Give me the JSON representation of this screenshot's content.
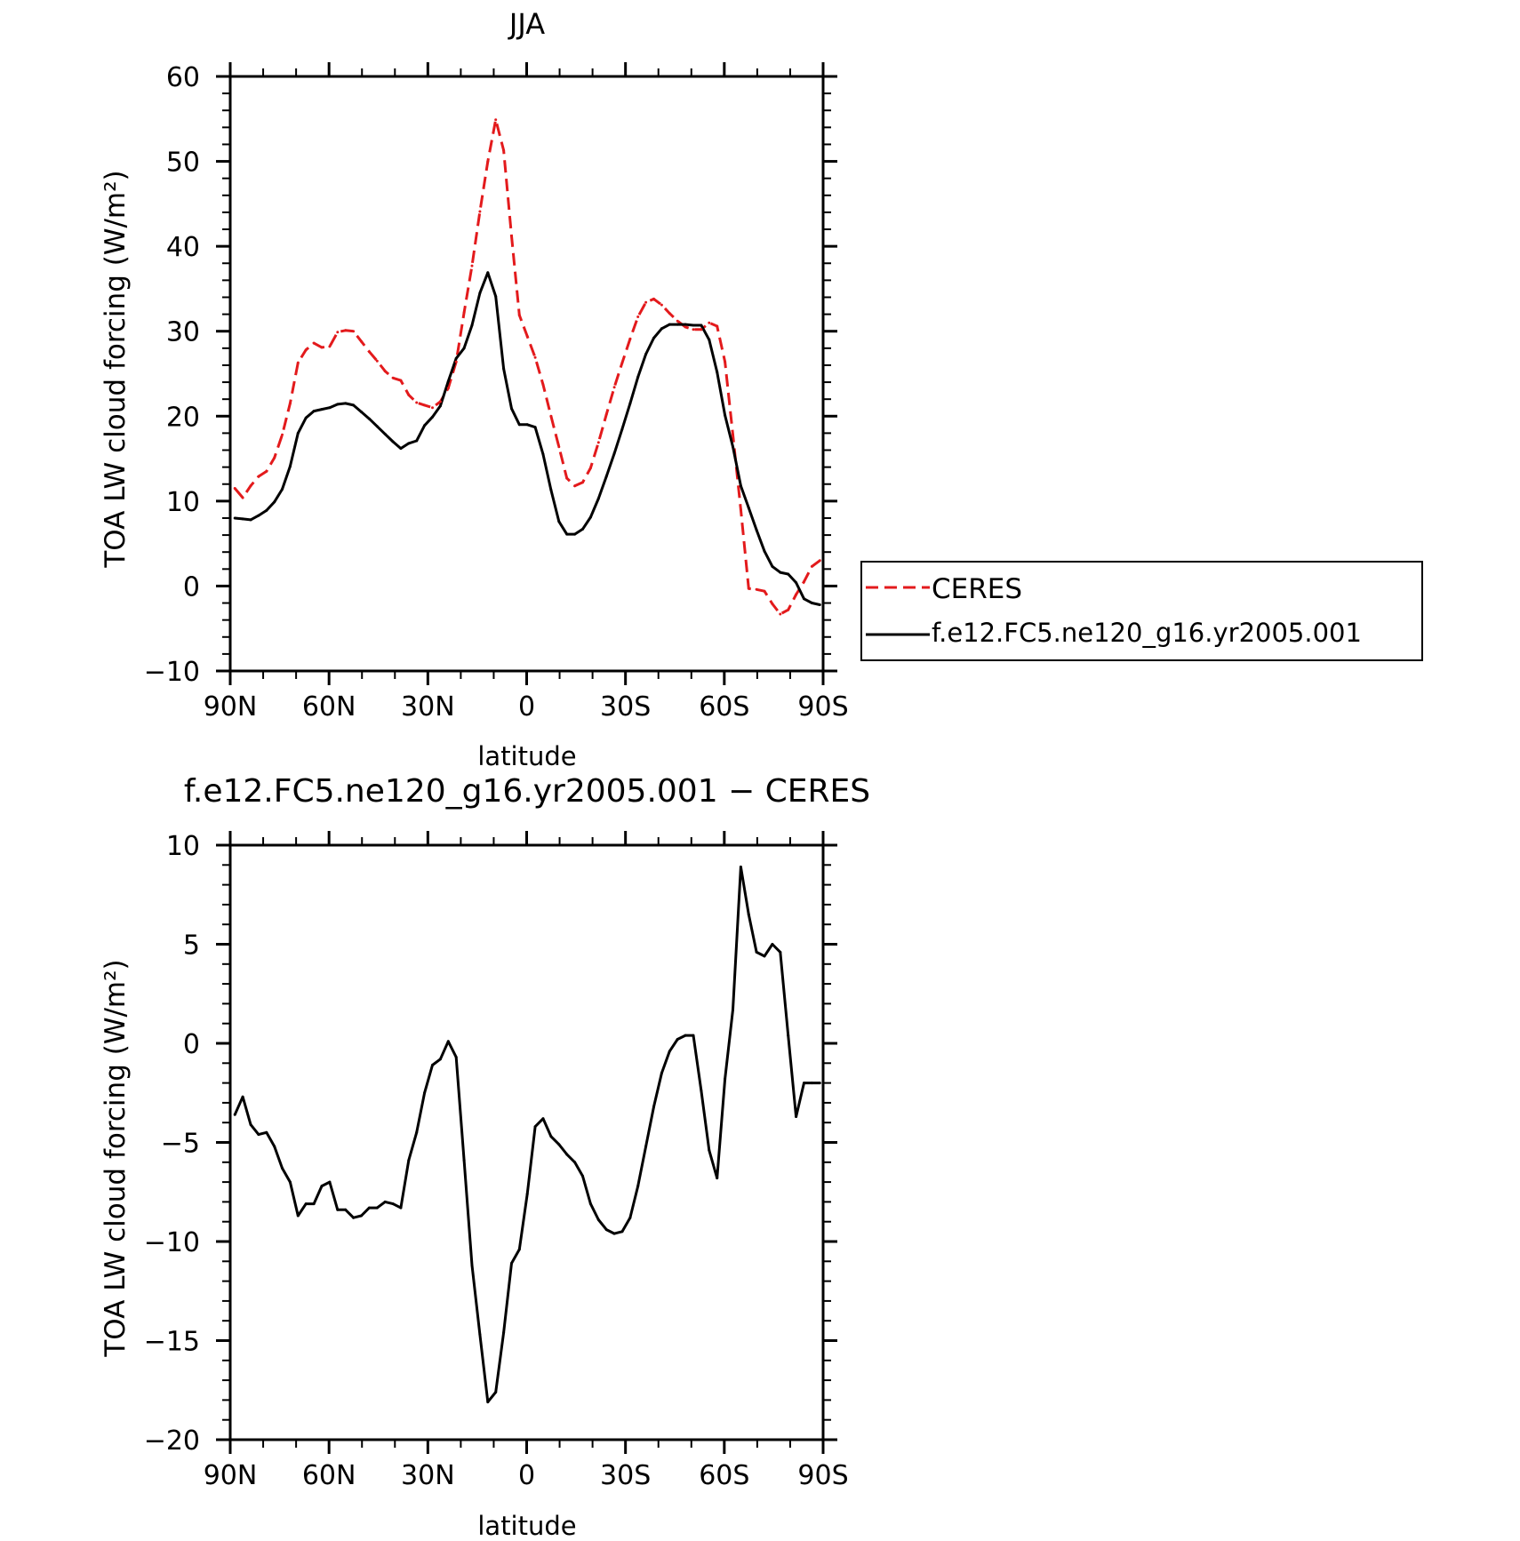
{
  "chart_data": [
    {
      "type": "line",
      "title": "JJA",
      "xlabel": "latitude",
      "ylabel": "TOA LW cloud forcing (W/m²)",
      "x_unit": "degrees latitude (positive = north)",
      "xlim": [
        90,
        -90
      ],
      "ylim": [
        -10,
        60
      ],
      "x_ticks": [
        90,
        60,
        30,
        0,
        -30,
        -60,
        -90
      ],
      "x_tick_labels": [
        "90N",
        "60N",
        "30N",
        "0",
        "30S",
        "60S",
        "90S"
      ],
      "y_ticks": [
        -10,
        0,
        10,
        20,
        30,
        40,
        50,
        60
      ],
      "y_tick_labels": [
        "−10",
        "0",
        "10",
        "20",
        "30",
        "40",
        "50",
        "60"
      ],
      "legend": {
        "placement": "outside-right"
      },
      "series": [
        {
          "name": "CERES",
          "color": "#e31a1c",
          "dash": "dashed",
          "x": [
            88.6,
            86.2,
            83.8,
            81.4,
            79.0,
            76.6,
            74.2,
            71.8,
            69.4,
            67.0,
            64.6,
            62.2,
            59.8,
            57.4,
            55.0,
            52.6,
            50.2,
            47.8,
            45.4,
            43.0,
            40.6,
            38.2,
            35.8,
            33.4,
            31.0,
            28.6,
            26.2,
            23.8,
            21.4,
            19.0,
            16.6,
            14.2,
            11.8,
            9.4,
            7.0,
            4.6,
            2.2,
            -0.2,
            -2.6,
            -5.0,
            -7.4,
            -9.8,
            -12.2,
            -14.6,
            -17.0,
            -19.4,
            -21.8,
            -24.2,
            -26.6,
            -29.0,
            -31.4,
            -33.8,
            -36.2,
            -38.6,
            -41.0,
            -43.4,
            -45.8,
            -48.2,
            -50.6,
            -53.0,
            -55.4,
            -57.8,
            -60.2,
            -62.6,
            -65.0,
            -67.4,
            -69.8,
            -72.2,
            -74.6,
            -77.0,
            -79.4,
            -81.8,
            -84.2,
            -86.6,
            -89.0
          ],
          "y": [
            11.5,
            10.4,
            11.8,
            12.9,
            13.5,
            15.1,
            17.8,
            21.5,
            26.3,
            27.8,
            28.6,
            28.1,
            28.2,
            29.9,
            30.1,
            30.0,
            28.8,
            27.6,
            26.5,
            25.3,
            24.5,
            24.2,
            22.5,
            21.6,
            21.3,
            21.0,
            21.7,
            23.3,
            26.4,
            32.2,
            37.7,
            44.1,
            50.0,
            54.9,
            51.3,
            41.2,
            31.9,
            29.4,
            26.9,
            23.7,
            20.0,
            16.4,
            12.7,
            11.8,
            12.2,
            13.9,
            16.9,
            20.2,
            23.4,
            26.3,
            29.1,
            31.7,
            33.4,
            33.8,
            33.1,
            32.1,
            31.2,
            30.5,
            30.2,
            30.2,
            31.0,
            30.6,
            26.4,
            17.8,
            9.0,
            -0.3,
            -0.4,
            -0.6,
            -2.1,
            -3.3,
            -2.8,
            -1.0,
            0.5,
            2.3,
            3.0
          ]
        },
        {
          "name": "f.e12.FC5.ne120_g16.yr2005.001",
          "color": "#000000",
          "dash": "solid",
          "x": [
            88.6,
            86.2,
            83.8,
            81.4,
            79.0,
            76.6,
            74.2,
            71.8,
            69.4,
            67.0,
            64.6,
            62.2,
            59.8,
            57.4,
            55.0,
            52.6,
            50.2,
            47.8,
            45.4,
            43.0,
            40.6,
            38.2,
            35.8,
            33.4,
            31.0,
            28.6,
            26.2,
            23.8,
            21.4,
            19.0,
            16.6,
            14.2,
            11.8,
            9.4,
            7.0,
            4.6,
            2.2,
            -0.2,
            -2.6,
            -5.0,
            -7.4,
            -9.8,
            -12.2,
            -14.6,
            -17.0,
            -19.4,
            -21.8,
            -24.2,
            -26.6,
            -29.0,
            -31.4,
            -33.8,
            -36.2,
            -38.6,
            -41.0,
            -43.4,
            -45.8,
            -48.2,
            -50.6,
            -53.0,
            -55.4,
            -57.8,
            -60.2,
            -62.6,
            -65.0,
            -67.4,
            -69.8,
            -72.2,
            -74.6,
            -77.0,
            -79.4,
            -81.8,
            -84.2,
            -86.6,
            -89.0
          ],
          "y": [
            8.0,
            7.9,
            7.8,
            8.3,
            8.9,
            9.9,
            11.4,
            14.1,
            18.0,
            19.8,
            20.6,
            20.8,
            21.0,
            21.4,
            21.5,
            21.3,
            20.5,
            19.7,
            18.8,
            17.9,
            17.0,
            16.2,
            16.8,
            17.1,
            18.9,
            19.9,
            21.2,
            24.1,
            26.8,
            28.0,
            30.7,
            34.5,
            36.9,
            34.1,
            25.6,
            20.9,
            19.0,
            19.0,
            18.7,
            15.5,
            11.3,
            7.6,
            6.1,
            6.1,
            6.7,
            8.1,
            10.3,
            12.9,
            15.6,
            18.5,
            21.5,
            24.6,
            27.3,
            29.2,
            30.3,
            30.8,
            30.8,
            30.8,
            30.7,
            30.7,
            29.0,
            25.2,
            20.1,
            16.4,
            11.8,
            9.2,
            6.6,
            4.1,
            2.3,
            1.6,
            1.4,
            0.4,
            -1.5,
            -2.0,
            -2.2
          ]
        }
      ]
    },
    {
      "type": "line",
      "title": "f.e12.FC5.ne120_g16.yr2005.001 − CERES",
      "xlabel": "latitude",
      "ylabel": "TOA LW cloud forcing (W/m²)",
      "x_unit": "degrees latitude (positive = north)",
      "xlim": [
        90,
        -90
      ],
      "ylim": [
        -20,
        10
      ],
      "x_ticks": [
        90,
        60,
        30,
        0,
        -30,
        -60,
        -90
      ],
      "x_tick_labels": [
        "90N",
        "60N",
        "30N",
        "0",
        "30S",
        "60S",
        "90S"
      ],
      "y_ticks": [
        -20,
        -15,
        -10,
        -5,
        0,
        5,
        10
      ],
      "y_tick_labels": [
        "−20",
        "−15",
        "−10",
        "−5",
        "0",
        "5",
        "10"
      ],
      "series": [
        {
          "color": "#000000",
          "dash": "solid",
          "x": [
            88.6,
            86.2,
            83.8,
            81.4,
            79.0,
            76.6,
            74.2,
            71.8,
            69.4,
            67.0,
            64.6,
            62.2,
            59.8,
            57.4,
            55.0,
            52.6,
            50.2,
            47.8,
            45.4,
            43.0,
            40.6,
            38.2,
            35.8,
            33.4,
            31.0,
            28.6,
            26.2,
            23.8,
            21.4,
            19.0,
            16.6,
            14.2,
            11.8,
            9.4,
            7.0,
            4.6,
            2.2,
            -0.2,
            -2.6,
            -5.0,
            -7.4,
            -9.8,
            -12.2,
            -14.6,
            -17.0,
            -19.4,
            -21.8,
            -24.2,
            -26.6,
            -29.0,
            -31.4,
            -33.8,
            -36.2,
            -38.6,
            -41.0,
            -43.4,
            -45.8,
            -48.2,
            -50.6,
            -53.0,
            -55.4,
            -57.8,
            -60.2,
            -62.6,
            -65.0,
            -67.4,
            -69.8,
            -72.2,
            -74.6,
            -77.0,
            -79.4,
            -81.8,
            -84.2,
            -86.6,
            -89.0
          ],
          "y": [
            -3.6,
            -2.7,
            -4.1,
            -4.6,
            -4.5,
            -5.2,
            -6.3,
            -7.0,
            -8.7,
            -8.1,
            -8.1,
            -7.2,
            -7.0,
            -8.4,
            -8.4,
            -8.8,
            -8.7,
            -8.3,
            -8.3,
            -8.0,
            -8.1,
            -8.3,
            -5.9,
            -4.5,
            -2.5,
            -1.1,
            -0.8,
            0.1,
            -0.7,
            -5.9,
            -11.2,
            -14.7,
            -18.1,
            -17.6,
            -14.6,
            -11.1,
            -10.4,
            -7.6,
            -4.2,
            -3.8,
            -4.7,
            -5.1,
            -5.6,
            -6.0,
            -6.7,
            -8.1,
            -8.9,
            -9.4,
            -9.6,
            -9.5,
            -8.8,
            -7.2,
            -5.2,
            -3.2,
            -1.5,
            -0.4,
            0.2,
            0.4,
            0.4,
            -2.4,
            -5.4,
            -6.8,
            -1.8,
            1.7,
            8.9,
            6.5,
            4.6,
            4.4,
            5.0,
            4.6,
            0.4,
            -3.7,
            -2.0,
            -2.0,
            -2.0
          ]
        }
      ]
    }
  ]
}
